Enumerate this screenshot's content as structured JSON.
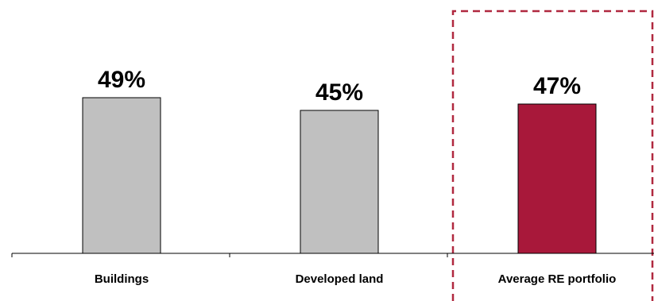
{
  "chart_data": {
    "type": "bar",
    "categories": [
      "Buildings",
      "Developed land",
      "Average RE portfolio"
    ],
    "values": [
      49,
      45,
      47
    ],
    "value_labels": [
      "49%",
      "45%",
      "47%"
    ],
    "unit": "%",
    "title": "",
    "xlabel": "",
    "ylabel": "",
    "ylim": [
      0,
      60
    ],
    "grid": false,
    "legend": "none",
    "highlight_index": 2,
    "highlight_box": "dashed",
    "colors": {
      "default_bar": "#c0c0c0",
      "highlight_bar": "#a8183a",
      "bar_outline": "#000000",
      "highlight_box_border": "#b0283f",
      "axis": "#000000"
    }
  }
}
